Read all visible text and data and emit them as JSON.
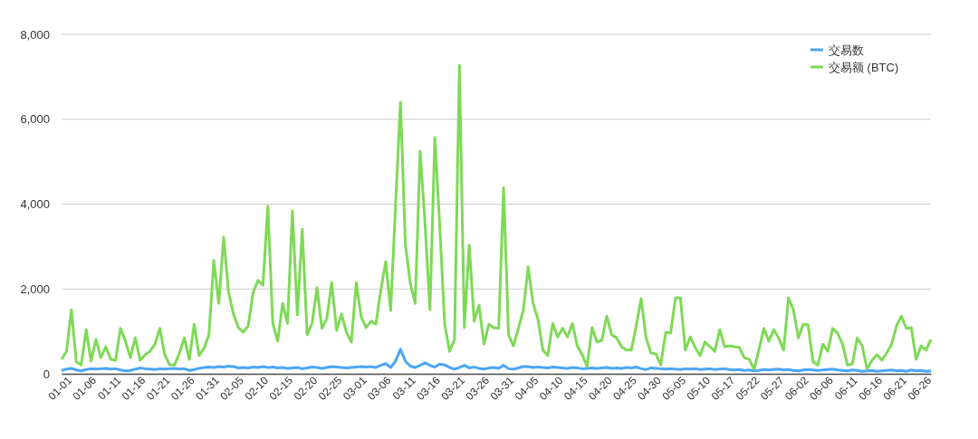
{
  "chart_data": {
    "type": "line",
    "categories": [
      "01-01",
      null,
      null,
      null,
      null,
      "01-06",
      null,
      null,
      null,
      null,
      "01-11",
      null,
      null,
      null,
      null,
      "01-16",
      null,
      null,
      null,
      null,
      "01-21",
      null,
      null,
      null,
      null,
      "01-26",
      null,
      null,
      null,
      null,
      "01-31",
      null,
      null,
      null,
      null,
      "02-05",
      null,
      null,
      null,
      null,
      "02-10",
      null,
      null,
      null,
      null,
      "02-15",
      null,
      null,
      null,
      null,
      "02-20",
      null,
      null,
      null,
      null,
      "02-25",
      null,
      null,
      null,
      null,
      "03-01",
      null,
      null,
      null,
      null,
      "03-06",
      null,
      null,
      null,
      null,
      "03-11",
      null,
      null,
      null,
      null,
      "03-16",
      null,
      null,
      null,
      null,
      "03-21",
      null,
      null,
      null,
      null,
      "03-26",
      null,
      null,
      null,
      null,
      "03-31",
      null,
      null,
      null,
      null,
      "04-05",
      null,
      null,
      null,
      null,
      "04-10",
      null,
      null,
      null,
      null,
      "04-15",
      null,
      null,
      null,
      null,
      "04-20",
      null,
      null,
      null,
      null,
      "04-25",
      null,
      null,
      null,
      null,
      "04-30",
      null,
      null,
      null,
      null,
      "05-05",
      null,
      null,
      null,
      null,
      "05-10",
      null,
      null,
      null,
      null,
      "05-17",
      null,
      null,
      null,
      null,
      "05-22",
      null,
      null,
      null,
      null,
      "05-27",
      null,
      null,
      null,
      null,
      "06-02",
      null,
      null,
      null,
      null,
      "06-06",
      null,
      null,
      null,
      null,
      "06-11",
      null,
      null,
      null,
      null,
      "06-16",
      null,
      null,
      null,
      null,
      "06-21",
      null,
      null,
      null,
      null,
      "06-26",
      null,
      null
    ],
    "series": [
      {
        "name": "交易数",
        "color": "#4aa6f8",
        "values": [
          80,
          110,
          130,
          90,
          70,
          100,
          120,
          110,
          120,
          130,
          110,
          120,
          90,
          70,
          80,
          110,
          140,
          120,
          110,
          100,
          120,
          110,
          120,
          130,
          110,
          120,
          80,
          100,
          130,
          150,
          160,
          150,
          170,
          160,
          180,
          170,
          140,
          150,
          140,
          160,
          150,
          170,
          150,
          160,
          140,
          150,
          130,
          140,
          150,
          120,
          140,
          160,
          150,
          130,
          150,
          170,
          160,
          150,
          140,
          150,
          160,
          170,
          160,
          170,
          150,
          200,
          240,
          150,
          300,
          580,
          300,
          180,
          150,
          200,
          260,
          200,
          160,
          230,
          210,
          150,
          110,
          150,
          200,
          140,
          160,
          130,
          110,
          140,
          150,
          130,
          200,
          120,
          110,
          140,
          170,
          170,
          150,
          160,
          150,
          140,
          160,
          150,
          140,
          130,
          150,
          140,
          120,
          130,
          140,
          130,
          140,
          150,
          130,
          140,
          130,
          150,
          140,
          160,
          120,
          100,
          140,
          130,
          120,
          110,
          120,
          110,
          100,
          120,
          110,
          120,
          100,
          110,
          120,
          100,
          110,
          120,
          100,
          90,
          100,
          80,
          90,
          70,
          80,
          100,
          90,
          100,
          110,
          90,
          100,
          80,
          70,
          90,
          100,
          90,
          80,
          90,
          100,
          110,
          90,
          80,
          70,
          90,
          80,
          60,
          70,
          80,
          60,
          70,
          80,
          90,
          70,
          80,
          60,
          90,
          70,
          80,
          60,
          70
        ]
      },
      {
        "name": "交易额 (BTC)",
        "color": "#7ed957",
        "values": [
          340,
          530,
          1510,
          280,
          210,
          1040,
          300,
          810,
          380,
          640,
          340,
          320,
          1070,
          770,
          380,
          850,
          320,
          450,
          530,
          700,
          1070,
          450,
          210,
          210,
          490,
          850,
          340,
          1170,
          430,
          600,
          920,
          2670,
          1660,
          3220,
          1920,
          1410,
          1090,
          980,
          1130,
          1920,
          2200,
          2090,
          3950,
          1190,
          770,
          1660,
          1190,
          3840,
          1390,
          3410,
          920,
          1190,
          2030,
          1070,
          1300,
          2150,
          1020,
          1410,
          980,
          750,
          2150,
          1340,
          1090,
          1240,
          1170,
          1980,
          2640,
          1490,
          3970,
          6400,
          3050,
          2130,
          1660,
          5250,
          3540,
          1510,
          5570,
          3480,
          1170,
          530,
          810,
          7270,
          1090,
          3030,
          1240,
          1620,
          700,
          1170,
          1090,
          1070,
          4390,
          920,
          660,
          1070,
          1490,
          2520,
          1660,
          1280,
          560,
          430,
          1190,
          870,
          1070,
          870,
          1190,
          660,
          450,
          170,
          1090,
          750,
          790,
          1360,
          920,
          850,
          640,
          560,
          560,
          1130,
          1770,
          850,
          490,
          470,
          210,
          980,
          960,
          1790,
          1790,
          560,
          870,
          620,
          430,
          750,
          640,
          530,
          1040,
          640,
          660,
          640,
          620,
          380,
          340,
          110,
          580,
          1070,
          770,
          1040,
          850,
          560,
          1790,
          1510,
          850,
          1170,
          1150,
          280,
          210,
          700,
          530,
          1070,
          960,
          700,
          210,
          230,
          850,
          660,
          110,
          320,
          450,
          320,
          490,
          700,
          1130,
          1360,
          1070,
          1090,
          340,
          660,
          560,
          810
        ]
      }
    ],
    "ylim": [
      0,
      8000
    ],
    "yticks": [
      0,
      {
        "value": 2000,
        "label": "2,000"
      },
      {
        "value": 4000,
        "label": "4,000"
      },
      {
        "value": 6000,
        "label": "6,000"
      },
      {
        "value": 8000,
        "label": "8,000"
      }
    ],
    "grid": "y",
    "legend": "top right",
    "marker": "none",
    "line_style": "solid"
  }
}
